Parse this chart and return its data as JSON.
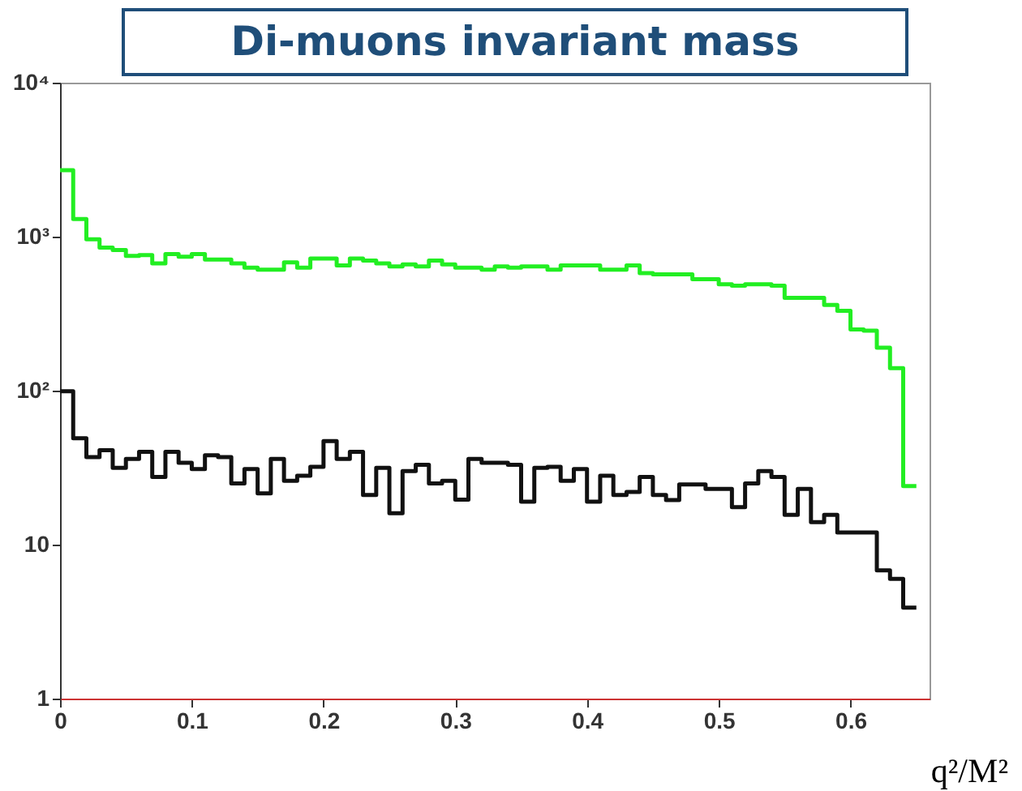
{
  "chart_data": {
    "type": "histogram",
    "title": "Di-muons invariant mass",
    "xlabel": "q²/M²",
    "bins": [
      0,
      0.01,
      0.02,
      0.03,
      0.04,
      0.05,
      0.06,
      0.07,
      0.08,
      0.09,
      0.1,
      0.11,
      0.12,
      0.13,
      0.14,
      0.15,
      0.16,
      0.17,
      0.18,
      0.19,
      0.2,
      0.21,
      0.22,
      0.23,
      0.24,
      0.25,
      0.26,
      0.27,
      0.28,
      0.29,
      0.3,
      0.31,
      0.32,
      0.33,
      0.34,
      0.35,
      0.36,
      0.37,
      0.38,
      0.39,
      0.4,
      0.41,
      0.42,
      0.43,
      0.44,
      0.45,
      0.46,
      0.47,
      0.48,
      0.49,
      0.5,
      0.51,
      0.52,
      0.53,
      0.54,
      0.55,
      0.56,
      0.57,
      0.58,
      0.59,
      0.6,
      0.61,
      0.62,
      0.63,
      0.64,
      0.65
    ],
    "series": [
      {
        "color": "#22ee22",
        "values": [
          2700,
          1300,
          960,
          850,
          820,
          750,
          760,
          670,
          770,
          740,
          770,
          710,
          710,
          670,
          630,
          610,
          610,
          680,
          630,
          720,
          720,
          650,
          720,
          700,
          670,
          640,
          660,
          640,
          700,
          660,
          630,
          630,
          610,
          640,
          630,
          640,
          640,
          610,
          650,
          650,
          650,
          610,
          610,
          650,
          580,
          570,
          570,
          570,
          530,
          530,
          490,
          480,
          490,
          490,
          480,
          400,
          400,
          400,
          360,
          330,
          250,
          245,
          190,
          140,
          24
        ]
      },
      {
        "color": "#111111",
        "values": [
          99,
          49,
          37,
          41,
          31.5,
          36,
          40,
          27.5,
          40,
          34,
          31,
          38,
          37,
          25,
          31,
          21.5,
          36,
          26,
          28,
          32,
          47,
          36,
          40,
          21,
          31.5,
          16,
          30,
          33,
          25,
          26,
          19.6,
          36,
          34,
          34,
          33,
          19,
          31.5,
          32,
          26,
          31,
          19,
          28,
          21,
          22,
          27.5,
          21,
          19.5,
          24.6,
          24.6,
          23,
          23,
          17.5,
          25,
          30,
          27.5,
          15.6,
          23,
          14,
          15.6,
          12,
          12,
          12,
          6.8,
          6,
          3.9
        ]
      }
    ],
    "xlim": [
      0,
      0.66
    ],
    "xticks": [
      0,
      0.1,
      0.2,
      0.3,
      0.4,
      0.5,
      0.6
    ],
    "log": "y",
    "ylim": [
      1,
      10000
    ],
    "yticks": [
      1,
      10,
      {
        "value": 100,
        "label": "10²"
      },
      {
        "value": 1000,
        "label": "10³"
      },
      {
        "value": 10000,
        "label": "10⁴"
      }
    ],
    "grid": false
  }
}
